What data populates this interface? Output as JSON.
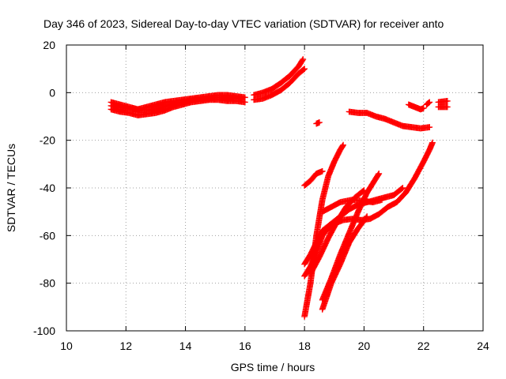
{
  "chart_data": {
    "type": "scatter",
    "title": "Day 346 of 2023, Sidereal Day-to-day VTEC variation (SDTVAR) for receiver anto",
    "xlabel": "GPS time / hours",
    "ylabel": "SDTVAR / TECUs",
    "xlim": [
      10,
      24
    ],
    "ylim": [
      -100,
      20
    ],
    "xticks": [
      "10",
      "12",
      "14",
      "16",
      "18",
      "20",
      "22",
      "24"
    ],
    "yticks": [
      "-100",
      "-80",
      "-60",
      "-40",
      "-20",
      "0",
      "20"
    ],
    "grid": true,
    "marker": "plus",
    "color": "#ff0000",
    "series": [
      {
        "values": [
          [
            11.5,
            -4
          ],
          [
            11.8,
            -5
          ],
          [
            12.1,
            -6
          ],
          [
            12.4,
            -7
          ],
          [
            12.7,
            -6
          ],
          [
            13.0,
            -5
          ],
          [
            13.3,
            -4
          ],
          [
            13.6,
            -3.5
          ],
          [
            13.9,
            -3
          ],
          [
            14.2,
            -2.5
          ],
          [
            14.5,
            -2
          ],
          [
            14.8,
            -1.5
          ],
          [
            15.1,
            -1
          ],
          [
            15.4,
            -1
          ],
          [
            15.7,
            -1.5
          ],
          [
            16.0,
            -2
          ]
        ]
      },
      {
        "values": [
          [
            11.5,
            -7
          ],
          [
            11.8,
            -8
          ],
          [
            12.1,
            -8.5
          ],
          [
            12.4,
            -9.5
          ],
          [
            12.7,
            -9
          ],
          [
            13.0,
            -8.5
          ],
          [
            13.3,
            -7.5
          ],
          [
            13.6,
            -6
          ],
          [
            13.9,
            -5
          ],
          [
            14.2,
            -4
          ],
          [
            14.5,
            -3.5
          ],
          [
            14.8,
            -3
          ],
          [
            15.1,
            -3
          ],
          [
            15.4,
            -3.5
          ],
          [
            15.7,
            -3.5
          ],
          [
            16.0,
            -4
          ]
        ]
      },
      {
        "values": [
          [
            11.5,
            -5.5
          ],
          [
            11.9,
            -6.5
          ],
          [
            12.3,
            -7
          ],
          [
            12.7,
            -7.5
          ],
          [
            13.1,
            -6.5
          ],
          [
            13.5,
            -5
          ],
          [
            13.9,
            -4
          ],
          [
            14.3,
            -3
          ],
          [
            14.7,
            -2.5
          ],
          [
            15.1,
            -2
          ],
          [
            15.5,
            -2
          ],
          [
            15.9,
            -2.5
          ]
        ]
      },
      {
        "values": [
          [
            16.3,
            -3
          ],
          [
            16.6,
            -2.5
          ],
          [
            16.9,
            -1
          ],
          [
            17.2,
            1
          ],
          [
            17.5,
            4
          ],
          [
            17.8,
            8
          ],
          [
            18.0,
            10
          ]
        ]
      },
      {
        "values": [
          [
            16.3,
            -1
          ],
          [
            16.6,
            0
          ],
          [
            16.9,
            1.5
          ],
          [
            17.2,
            4
          ],
          [
            17.5,
            7
          ],
          [
            17.8,
            11
          ],
          [
            17.95,
            14
          ]
        ]
      },
      {
        "values": [
          [
            18.4,
            -13
          ],
          [
            18.5,
            -12.5
          ]
        ]
      },
      {
        "values": [
          [
            19.5,
            -8
          ],
          [
            19.8,
            -8.5
          ],
          [
            20.1,
            -8.5
          ],
          [
            20.4,
            -10
          ],
          [
            20.7,
            -11
          ],
          [
            21.0,
            -12.5
          ],
          [
            21.3,
            -14
          ],
          [
            21.6,
            -14.5
          ],
          [
            21.9,
            -15
          ],
          [
            22.2,
            -14.5
          ]
        ]
      },
      {
        "values": [
          [
            21.5,
            -5
          ],
          [
            21.7,
            -6
          ],
          [
            21.9,
            -7
          ],
          [
            22.0,
            -6.5
          ]
        ]
      },
      {
        "values": [
          [
            22.1,
            -5
          ],
          [
            22.2,
            -4
          ]
        ]
      },
      {
        "values": [
          [
            22.5,
            -6
          ],
          [
            22.8,
            -6
          ]
        ]
      },
      {
        "values": [
          [
            22.5,
            -4
          ],
          [
            22.8,
            -3.5
          ]
        ]
      },
      {
        "values": [
          [
            18.0,
            -39
          ],
          [
            18.2,
            -37
          ],
          [
            18.4,
            -34
          ],
          [
            18.6,
            -33
          ]
        ]
      },
      {
        "values": [
          [
            18.0,
            -94
          ],
          [
            18.2,
            -80
          ],
          [
            18.4,
            -60
          ],
          [
            18.6,
            -45
          ],
          [
            18.8,
            -35
          ],
          [
            19.0,
            -29
          ],
          [
            19.2,
            -24
          ],
          [
            19.3,
            -22
          ]
        ]
      },
      {
        "values": [
          [
            18.0,
            -77
          ],
          [
            18.2,
            -73
          ],
          [
            18.4,
            -67
          ],
          [
            18.6,
            -60
          ],
          [
            18.8,
            -57
          ],
          [
            19.0,
            -55
          ],
          [
            19.3,
            -53.5
          ],
          [
            19.6,
            -53
          ],
          [
            19.9,
            -53.5
          ],
          [
            20.2,
            -53
          ],
          [
            20.5,
            -51
          ],
          [
            20.8,
            -48
          ],
          [
            21.1,
            -46
          ],
          [
            21.4,
            -42
          ],
          [
            21.7,
            -36
          ],
          [
            22.0,
            -29
          ],
          [
            22.2,
            -24
          ],
          [
            22.3,
            -21
          ]
        ]
      },
      {
        "values": [
          [
            18.0,
            -72
          ],
          [
            18.2,
            -68
          ],
          [
            18.4,
            -63
          ],
          [
            18.6,
            -58
          ],
          [
            18.9,
            -55
          ],
          [
            19.2,
            -52
          ],
          [
            19.5,
            -49
          ],
          [
            19.8,
            -47
          ],
          [
            20.1,
            -46
          ],
          [
            20.4,
            -45
          ],
          [
            20.7,
            -44
          ],
          [
            21.0,
            -43
          ],
          [
            21.3,
            -40
          ]
        ]
      },
      {
        "values": [
          [
            18.6,
            -50
          ],
          [
            18.9,
            -48
          ],
          [
            19.2,
            -46
          ],
          [
            19.6,
            -45
          ],
          [
            20.0,
            -45.5
          ],
          [
            20.3,
            -46
          ],
          [
            20.6,
            -45
          ]
        ]
      },
      {
        "values": [
          [
            18.6,
            -91
          ],
          [
            18.9,
            -80
          ],
          [
            19.2,
            -72
          ],
          [
            19.5,
            -63
          ],
          [
            19.8,
            -57
          ],
          [
            20.1,
            -52
          ]
        ]
      },
      {
        "values": [
          [
            18.6,
            -87
          ],
          [
            18.9,
            -78
          ],
          [
            19.2,
            -68
          ],
          [
            19.5,
            -59
          ],
          [
            19.8,
            -50
          ],
          [
            20.1,
            -42
          ],
          [
            20.4,
            -36
          ],
          [
            20.5,
            -34
          ]
        ]
      },
      {
        "values": [
          [
            18.2,
            -76
          ],
          [
            18.5,
            -69
          ],
          [
            18.8,
            -61
          ],
          [
            19.1,
            -54
          ],
          [
            19.4,
            -48
          ],
          [
            19.7,
            -44
          ],
          [
            20.0,
            -41
          ]
        ]
      }
    ]
  }
}
